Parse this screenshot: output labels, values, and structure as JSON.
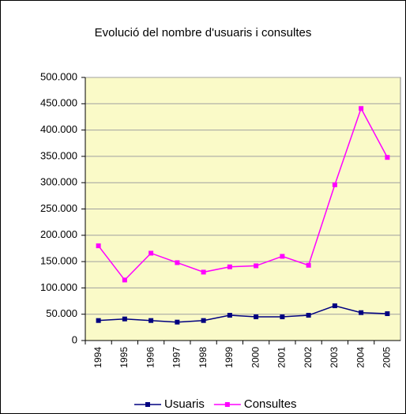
{
  "chart_data": {
    "type": "line",
    "title": "Evolució del nombre d'usuaris i consultes",
    "categories": [
      "1994",
      "1995",
      "1996",
      "1997",
      "1998",
      "1999",
      "2000",
      "2001",
      "2002",
      "2003",
      "2004",
      "2005"
    ],
    "series": [
      {
        "name": "Usuaris",
        "color": "#000080",
        "values": [
          38000,
          41000,
          38000,
          35000,
          38000,
          48000,
          45000,
          45000,
          48000,
          66000,
          53000,
          51000
        ]
      },
      {
        "name": "Consultes",
        "color": "#ff00ff",
        "values": [
          180000,
          115000,
          166000,
          148000,
          130000,
          140000,
          142000,
          160000,
          143000,
          296000,
          441000,
          348000
        ]
      }
    ],
    "ylim": [
      0,
      500000
    ],
    "yticks": [
      0,
      {
        "value": 50000,
        "label": "50.000"
      },
      {
        "value": 100000,
        "label": "100.000"
      },
      {
        "value": 150000,
        "label": "150.000"
      },
      {
        "value": 200000,
        "label": "200.000"
      },
      {
        "value": 250000,
        "label": "250.000"
      },
      {
        "value": 300000,
        "label": "300.000"
      },
      {
        "value": 350000,
        "label": "350.000"
      },
      {
        "value": 400000,
        "label": "400.000"
      },
      {
        "value": 450000,
        "label": "450.000"
      },
      {
        "value": 500000,
        "label": "500.000"
      }
    ],
    "grid": true,
    "plot_background": "#fafac8",
    "legend": "bottom"
  }
}
